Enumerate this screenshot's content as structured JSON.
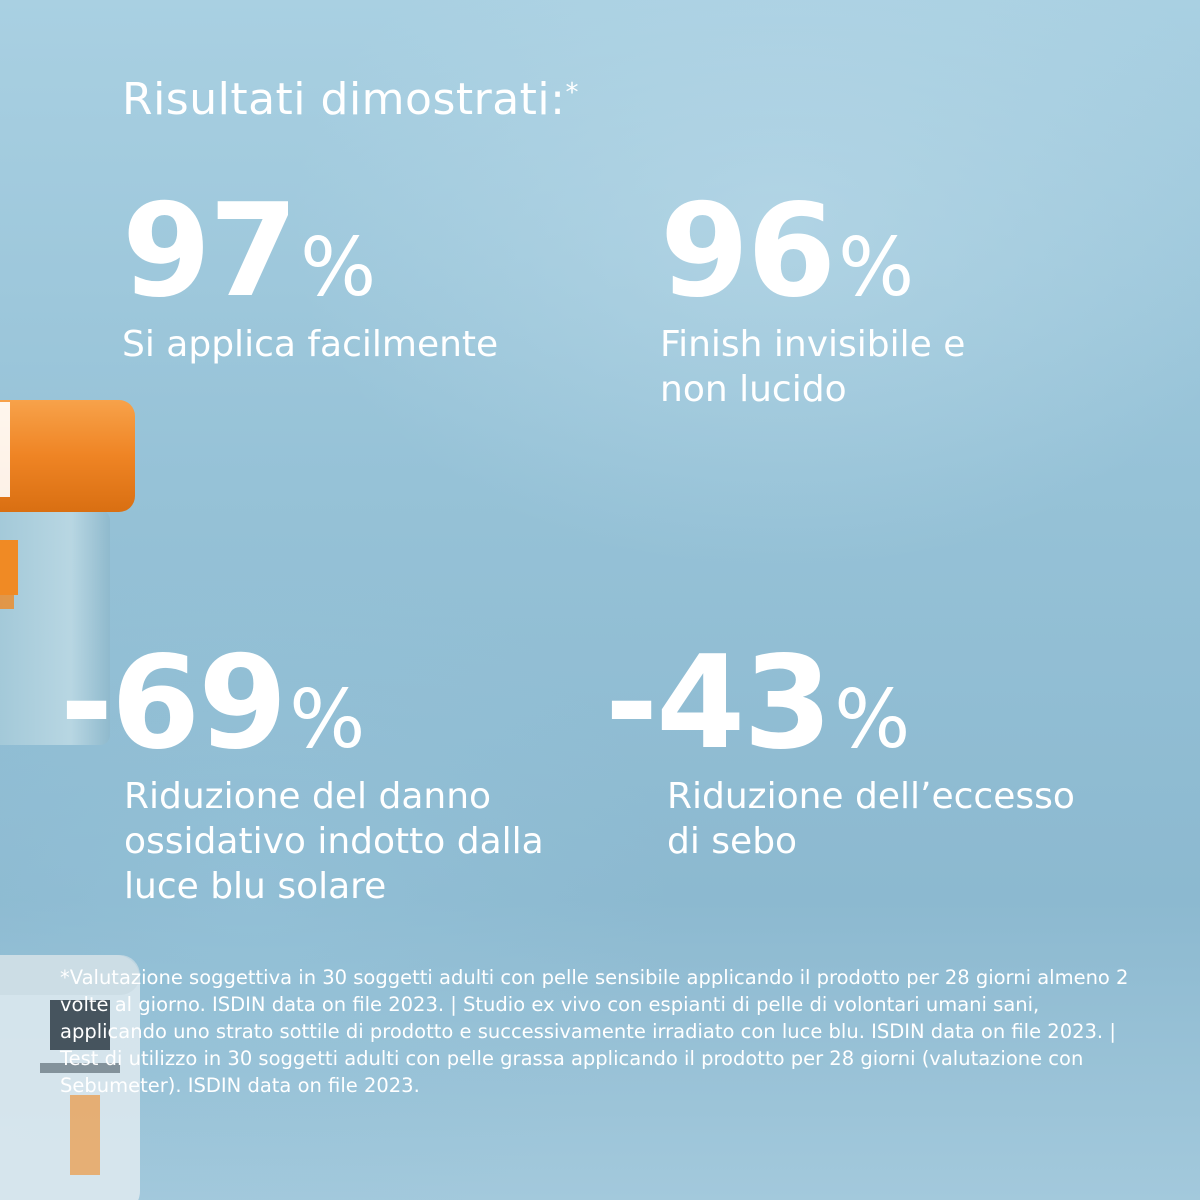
{
  "headline": {
    "text": "Risultati dimostrati:",
    "marker": "*"
  },
  "stats": [
    {
      "value": "97",
      "unit": "%",
      "label": "Si applica facilmente"
    },
    {
      "value": "96",
      "unit": "%",
      "label": "Finish invisibile e non lucido"
    },
    {
      "value": "-69",
      "unit": "%",
      "label": "Riduzione del danno ossidativo indotto dalla luce blu solare"
    },
    {
      "value": "-43",
      "unit": "%",
      "label": "Riduzione dell’eccesso di sebo"
    }
  ],
  "footnote": "*Valutazione soggettiva in 30 soggetti adulti con pelle sensibile applicando il prodotto per 28 giorni almeno 2 volte al giorno. ISDIN data on file 2023. | Studio ex vivo con espianti di pelle di volontari umani sani, applicando uno strato sottile di prodotto e successivamente irradiato con luce blu. ISDIN data on file 2023. | Test di utilizzo in 30 soggetti adulti con pelle grassa applicando il prodotto per 28 giorni (valutazione con Sebumeter). ISDIN data on file 2023.",
  "colors": {
    "text": "#ffffff",
    "background": "#96c2d7",
    "jar_lid": "#f08a24"
  },
  "icons": {
    "product_jar": "sunscreen-jar-image"
  }
}
